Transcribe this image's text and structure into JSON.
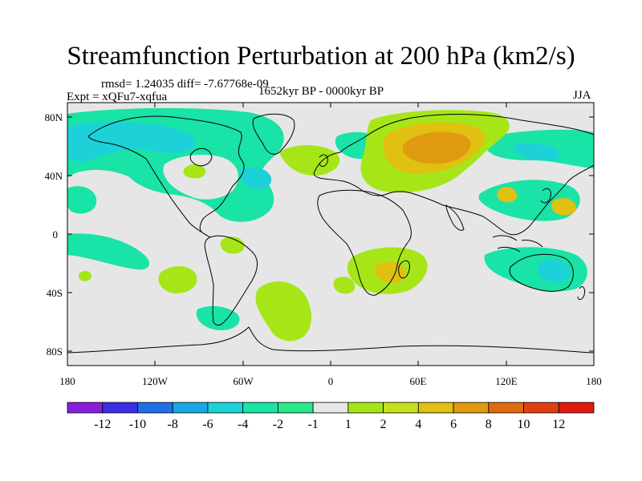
{
  "title": "Streamfunction Perturbation at 200 hPa (km2/s)",
  "stats_line": "rmsd= 1.24035 diff= -7.67768e-09",
  "experiment": "Expt = xQFu7-xqfua",
  "period": "1652kyr BP - 0000kyr BP",
  "season": "JJA",
  "lat_labels": [
    "80N",
    "40N",
    "0",
    "40S",
    "80S"
  ],
  "lon_labels": [
    "180",
    "120W",
    "60W",
    "0",
    "60E",
    "120E",
    "180"
  ],
  "colorbar": {
    "labels": [
      "-12",
      "-10",
      "-8",
      "-6",
      "-4",
      "-2",
      "-1",
      "1",
      "2",
      "4",
      "6",
      "8",
      "10",
      "12"
    ],
    "colors": [
      "#8a1ee0",
      "#3a2ee6",
      "#1f6fe6",
      "#16a8e6",
      "#1cd2d8",
      "#19e3a6",
      "#27e88a",
      "#e6e6e6",
      "#a6e619",
      "#c8e01a",
      "#e0c010",
      "#e09a10",
      "#e06a10",
      "#e04010",
      "#e01a10"
    ]
  },
  "legend_colors": {
    "neutral": "#e6e6e6",
    "teal": "#19e3a6",
    "cyan": "#1cd2d8",
    "lime": "#a6e619",
    "yellow": "#e0c010",
    "orange": "#e09a10"
  }
}
